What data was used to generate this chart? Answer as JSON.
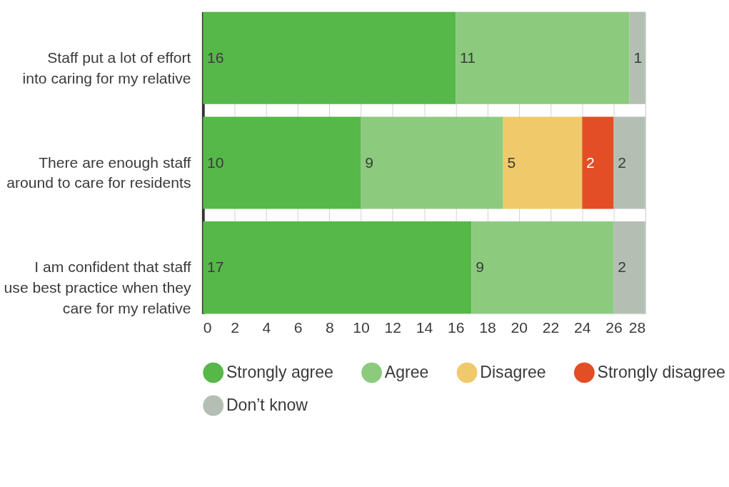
{
  "chart_data": {
    "type": "bar",
    "orientation": "horizontal",
    "stacked": true,
    "data_labels": true,
    "grid": "x",
    "legend": "bottom",
    "categories": [
      "Staff put a lot of effort into caring for my relative",
      "There are enough staff around to care for residents",
      "I am confident that staff use best practice when they care for my relative"
    ],
    "series": [
      {
        "name": "Strongly agree",
        "color": "#55b848",
        "values": [
          16,
          10,
          17
        ]
      },
      {
        "name": "Agree",
        "color": "#8ccb7e",
        "values": [
          11,
          9,
          9
        ]
      },
      {
        "name": "Disagree",
        "color": "#f0c96a",
        "values": [
          null,
          5,
          null
        ]
      },
      {
        "name": "Strongly disagree",
        "color": "#e34e26",
        "values": [
          null,
          2,
          null
        ]
      },
      {
        "name": "Don’t know",
        "color": "#b3bfb3",
        "values": [
          1,
          2,
          2
        ]
      }
    ],
    "xlim": [
      0,
      28
    ],
    "xticks": [
      0,
      2,
      4,
      6,
      8,
      10,
      12,
      14,
      16,
      18,
      20,
      22,
      24,
      26,
      28
    ]
  }
}
